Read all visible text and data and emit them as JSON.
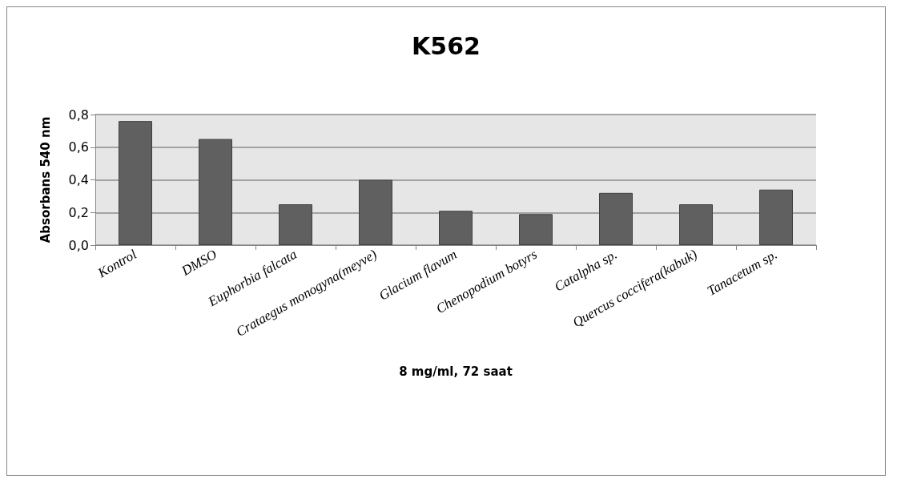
{
  "chart_data": {
    "type": "bar",
    "title": "K562",
    "xlabel": "8 mg/ml, 72 saat",
    "ylabel": "Absorbans 540 nm",
    "categories": [
      "Kontrol",
      "DMSO",
      "Euphorbia falcata",
      "Crataegus monogyna(meyve)",
      "Glacium flavum",
      "Chenopodium botyrs",
      "Catalpha sp.",
      "Quercus coccifera(kabuk)",
      "Tanacetum sp."
    ],
    "values": [
      0.76,
      0.65,
      0.25,
      0.4,
      0.21,
      0.19,
      0.32,
      0.25,
      0.34
    ],
    "color": "#606060",
    "ylim": [
      0,
      0.8
    ],
    "yticks": [
      {
        "value": 0,
        "label": "0,0"
      },
      {
        "value": 0.2,
        "label": "0,2"
      },
      {
        "value": 0.4,
        "label": "0,4"
      },
      {
        "value": 0.6,
        "label": "0,6"
      },
      {
        "value": 0.8,
        "label": "0,8"
      }
    ],
    "grid": "y"
  }
}
